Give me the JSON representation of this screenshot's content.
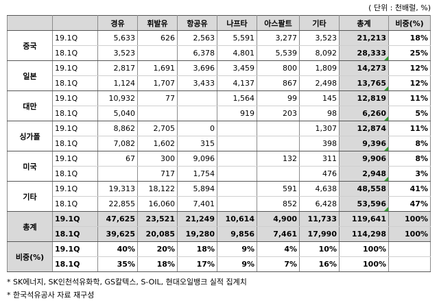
{
  "unit": "( 단위 : 천배럴, %)",
  "columns": [
    "",
    "",
    "경유",
    "휘발유",
    "항공유",
    "나프타",
    "아스팔트",
    "기타",
    "총계",
    "비중(%)"
  ],
  "groups": [
    {
      "name": "중국",
      "rows": [
        {
          "period": "19.1Q",
          "cells": [
            "5,633",
            "626",
            "2,563",
            "5,591",
            "3,277",
            "3,523",
            "21,213",
            "18%"
          ],
          "mark": false
        },
        {
          "period": "18.1Q",
          "cells": [
            "3,523",
            "",
            "6,378",
            "4,801",
            "5,539",
            "8,092",
            "28,333",
            "25%"
          ],
          "mark": true
        }
      ]
    },
    {
      "name": "일본",
      "rows": [
        {
          "period": "19.1Q",
          "cells": [
            "2,817",
            "1,691",
            "3,696",
            "3,459",
            "800",
            "1,809",
            "14,273",
            "12%"
          ],
          "mark": false
        },
        {
          "period": "18.1Q",
          "cells": [
            "1,124",
            "1,707",
            "3,433",
            "4,137",
            "867",
            "2,498",
            "13,765",
            "12%"
          ],
          "mark": true
        }
      ]
    },
    {
      "name": "대만",
      "rows": [
        {
          "period": "19.1Q",
          "cells": [
            "10,932",
            "77",
            "",
            "1,564",
            "99",
            "145",
            "12,819",
            "11%"
          ],
          "mark": false
        },
        {
          "period": "18.1Q",
          "cells": [
            "5,040",
            "",
            "",
            "919",
            "203",
            "98",
            "6,260",
            "5%"
          ],
          "mark": true
        }
      ]
    },
    {
      "name": "싱가폴",
      "rows": [
        {
          "period": "19.1Q",
          "cells": [
            "8,862",
            "2,705",
            "0",
            "",
            "",
            "1,307",
            "12,874",
            "11%"
          ],
          "mark": false
        },
        {
          "period": "18.1Q",
          "cells": [
            "7,082",
            "1,602",
            "315",
            "",
            "",
            "398",
            "9,396",
            "8%"
          ],
          "mark": true
        }
      ]
    },
    {
      "name": "미국",
      "rows": [
        {
          "period": "19.1Q",
          "cells": [
            "67",
            "300",
            "9,096",
            "",
            "132",
            "311",
            "9,906",
            "8%"
          ],
          "mark": false
        },
        {
          "period": "18.1Q",
          "cells": [
            "",
            "717",
            "1,754",
            "",
            "",
            "476",
            "2,948",
            "3%"
          ],
          "mark": true
        }
      ]
    },
    {
      "name": "기타",
      "rows": [
        {
          "period": "19.1Q",
          "cells": [
            "19,313",
            "18,122",
            "5,894",
            "",
            "591",
            "4,638",
            "48,558",
            "41%"
          ],
          "mark": false
        },
        {
          "period": "18.1Q",
          "cells": [
            "22,855",
            "16,060",
            "7,401",
            "",
            "852",
            "6,428",
            "53,596",
            "47%"
          ],
          "mark": true
        }
      ]
    }
  ],
  "total": {
    "name": "총계",
    "rows": [
      {
        "period": "19.1Q",
        "cells": [
          "47,625",
          "23,521",
          "21,249",
          "10,614",
          "4,900",
          "11,733",
          "119,641",
          "100%"
        ]
      },
      {
        "period": "18.1Q",
        "cells": [
          "39,625",
          "20,085",
          "19,280",
          "9,856",
          "7,461",
          "17,990",
          "114,298",
          "100%"
        ]
      }
    ]
  },
  "share": {
    "name": "비중(%)",
    "rows": [
      {
        "period": "19.1Q",
        "cells": [
          "40%",
          "20%",
          "18%",
          "9%",
          "4%",
          "10%",
          "100%",
          ""
        ]
      },
      {
        "period": "18.1Q",
        "cells": [
          "35%",
          "18%",
          "17%",
          "9%",
          "7%",
          "16%",
          "100%",
          ""
        ]
      }
    ]
  },
  "notes": [
    "* SK에너지, SK인천석유화학, GS칼텍스, S-OIL, 현대오일뱅크 실적 집계치",
    "* 한국석유공사 자료 재구성"
  ]
}
